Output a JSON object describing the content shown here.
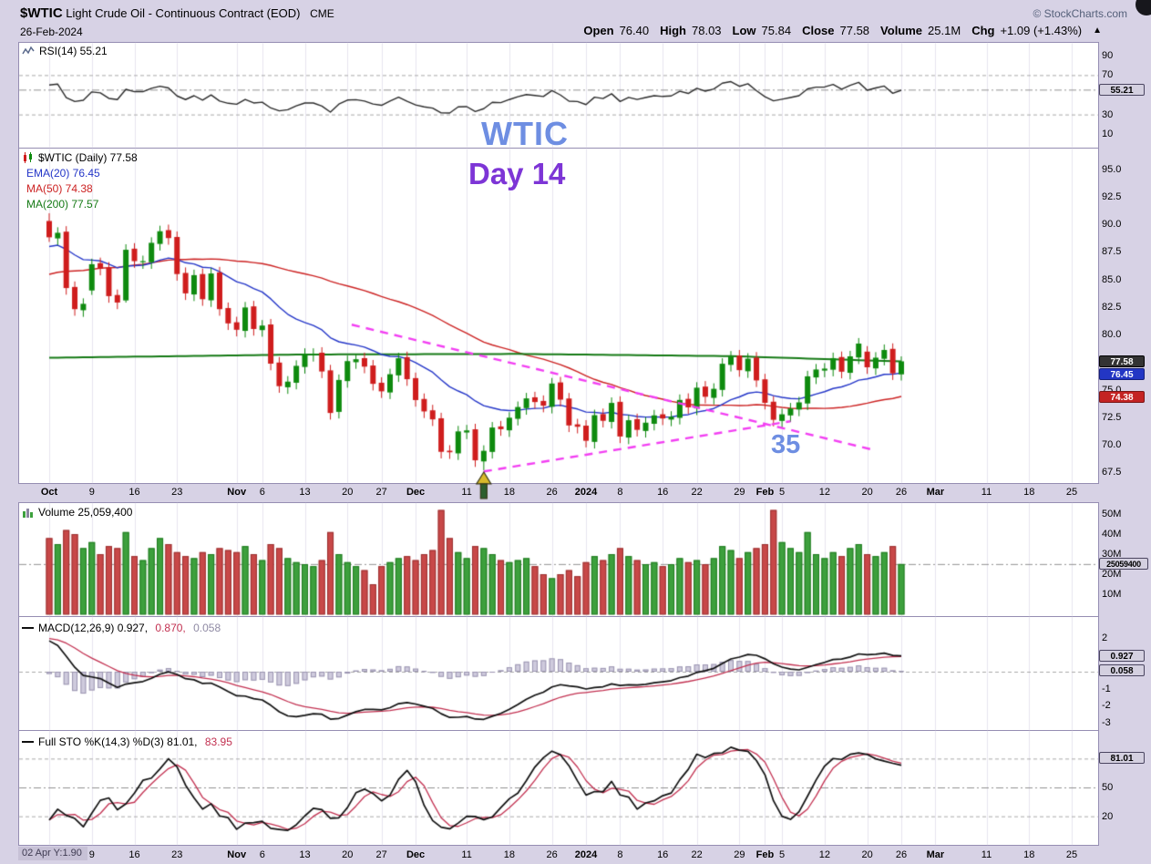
{
  "header": {
    "symbol": "$WTIC",
    "title": "Light Crude Oil - Continuous Contract (EOD)",
    "exchange": "CME",
    "copyright": "© StockCharts.com",
    "date": "26-Feb-2024",
    "quote": {
      "open_label": "Open",
      "open": "76.40",
      "high_label": "High",
      "high": "78.03",
      "low_label": "Low",
      "low": "75.84",
      "close_label": "Close",
      "close": "77.58",
      "volume_label": "Volume",
      "volume": "25.1M",
      "chg_label": "Chg",
      "chg": "+1.09 (+1.43%)",
      "chg_arrow": "▲"
    }
  },
  "legends": {
    "rsi": "RSI(14) 55.21",
    "price_symbol": "$WTIC (Daily) 77.58",
    "ema20": "EMA(20) 76.45",
    "ma50": "MA(50) 74.38",
    "ma200": "MA(200) 77.57",
    "volume": "Volume 25,059,400",
    "macd_1": "MACD(12,26,9) 0.927, ",
    "macd_2": "0.870, ",
    "macd_3": "0.058",
    "sto_1": "Full STO %K(14,3) %D(3) 81.01, ",
    "sto_2": "83.95"
  },
  "annotations": {
    "symbol_note": "WTIC",
    "day_note": "Day 14",
    "count_note": "35"
  },
  "footer_note": "02 Apr Y:1.90",
  "chart_data": {
    "type": "candlestick",
    "symbol": "$WTIC",
    "period": "Daily",
    "date_range": "2023-10-02 to 2024-02-26",
    "x_ticks": [
      {
        "i": 0,
        "label": "Oct",
        "bold": true
      },
      {
        "i": 5,
        "label": "9"
      },
      {
        "i": 10,
        "label": "16"
      },
      {
        "i": 15,
        "label": "23"
      },
      {
        "i": 22,
        "label": "Nov",
        "bold": true
      },
      {
        "i": 25,
        "label": "6"
      },
      {
        "i": 30,
        "label": "13"
      },
      {
        "i": 35,
        "label": "20"
      },
      {
        "i": 39,
        "label": "27"
      },
      {
        "i": 43,
        "label": "Dec",
        "bold": true
      },
      {
        "i": 49,
        "label": "11"
      },
      {
        "i": 54,
        "label": "18"
      },
      {
        "i": 59,
        "label": "26"
      },
      {
        "i": 63,
        "label": "2024",
        "bold": true
      },
      {
        "i": 67,
        "label": "8"
      },
      {
        "i": 72,
        "label": "16"
      },
      {
        "i": 76,
        "label": "22"
      },
      {
        "i": 81,
        "label": "29"
      },
      {
        "i": 84,
        "label": "Feb",
        "bold": true
      },
      {
        "i": 86,
        "label": "5"
      },
      {
        "i": 91,
        "label": "12"
      },
      {
        "i": 96,
        "label": "20"
      },
      {
        "i": 100,
        "label": "26"
      },
      {
        "i": 104,
        "label": "Mar",
        "bold": true
      },
      {
        "i": 110,
        "label": "11"
      },
      {
        "i": 115,
        "label": "18"
      },
      {
        "i": 120,
        "label": "25"
      }
    ],
    "y_axis": {
      "rsi": {
        "ticks": [
          90,
          70,
          30,
          10
        ],
        "box": {
          "value": 55.21,
          "label": "55.21"
        },
        "dashed": [
          70,
          30
        ],
        "dashdot": [
          55.21
        ]
      },
      "price": {
        "ticks": [
          95.0,
          92.5,
          90.0,
          87.5,
          85.0,
          82.5,
          80.0,
          75.0,
          72.5,
          70.0,
          67.5
        ],
        "boxes": [
          {
            "value": 77.58,
            "label": "77.58",
            "style": "dark"
          },
          {
            "value": 76.45,
            "label": "76.45",
            "style": "blue"
          },
          {
            "value": 74.38,
            "label": "74.38",
            "style": "red"
          }
        ]
      },
      "volume": {
        "ticks": [
          {
            "v": 50,
            "label": "50M"
          },
          {
            "v": 40,
            "label": "40M"
          },
          {
            "v": 30,
            "label": "30M"
          },
          {
            "v": 20,
            "label": "20M"
          },
          {
            "v": 10,
            "label": "10M"
          }
        ],
        "box": {
          "value": 25.0594,
          "label": "25059400"
        },
        "dashdot": [
          25.0594
        ]
      },
      "macd": {
        "ticks": [
          {
            "v": 2,
            "label": "2"
          },
          {
            "v": 1,
            "label": "1"
          },
          {
            "v": -1,
            "label": "-1"
          },
          {
            "v": -2,
            "label": "-2"
          },
          {
            "v": -3,
            "label": "-3"
          }
        ],
        "boxes": [
          {
            "value": 0.927,
            "label": "0.927"
          },
          {
            "value": 0.058,
            "label": "0.058"
          }
        ],
        "dashed": [
          0
        ]
      },
      "sto": {
        "ticks": [
          {
            "v": 50,
            "label": "50"
          },
          {
            "v": 20,
            "label": "20"
          }
        ],
        "box": {
          "value": 81.01,
          "label": "81.01"
        },
        "dashed": [
          80,
          20
        ],
        "dashdot": [
          50
        ]
      }
    },
    "candles": {
      "open": [
        90.3,
        88.72,
        89.33,
        84.32,
        82.21,
        84.0,
        86.48,
        86.07,
        83.59,
        83.1,
        87.79,
        86.56,
        86.56,
        88.22,
        89.47,
        88.85,
        85.59,
        83.64,
        85.49,
        83.11,
        85.64,
        82.41,
        81.12,
        80.34,
        82.56,
        80.41,
        80.92,
        77.47,
        75.23,
        75.64,
        77.07,
        78.16,
        78.36,
        76.76,
        73.0,
        75.79,
        77.5,
        77.87,
        77.2,
        75.64,
        74.76,
        76.31,
        77.96,
        76.06,
        74.17,
        73.14,
        72.42,
        69.48,
        69.24,
        71.13,
        71.42,
        68.51,
        69.37,
        71.68,
        71.33,
        72.37,
        73.34,
        74.32,
        73.99,
        73.46,
        75.67,
        74.21,
        71.87,
        71.75,
        70.28,
        72.8,
        72.09,
        73.91,
        70.67,
        72.34,
        71.27,
        71.92,
        72.78,
        72.3,
        72.46,
        74.18,
        73.31,
        75.29,
        74.27,
        74.99,
        77.26,
        78.11,
        76.68,
        77.92,
        75.95,
        73.92,
        72.18,
        72.68,
        73.21,
        73.76,
        76.12,
        76.74,
        76.82,
        77.97,
        76.54,
        77.93,
        78.46,
        76.94,
        77.81,
        78.71,
        76.4
      ],
      "high": [
        91.0,
        89.73,
        89.83,
        84.82,
        83.29,
        86.88,
        86.98,
        86.57,
        84.09,
        88.19,
        88.29,
        87.16,
        88.82,
        89.87,
        89.97,
        89.35,
        86.09,
        85.89,
        85.99,
        86.04,
        86.14,
        82.91,
        81.62,
        82.96,
        83.06,
        81.32,
        81.42,
        77.97,
        76.24,
        77.67,
        78.76,
        78.76,
        78.86,
        77.26,
        76.39,
        78.1,
        78.27,
        78.37,
        77.7,
        76.14,
        76.91,
        78.36,
        78.46,
        76.56,
        74.67,
        73.64,
        72.92,
        69.98,
        71.73,
        71.82,
        71.92,
        69.97,
        72.08,
        72.18,
        72.97,
        73.94,
        74.72,
        74.82,
        74.49,
        76.07,
        76.17,
        74.71,
        72.37,
        72.25,
        73.2,
        73.3,
        74.31,
        74.41,
        72.74,
        72.84,
        72.52,
        73.18,
        73.28,
        73.06,
        74.58,
        74.68,
        75.69,
        75.79,
        75.59,
        77.86,
        78.51,
        78.61,
        78.32,
        78.42,
        76.45,
        74.42,
        73.28,
        73.81,
        74.36,
        76.72,
        77.34,
        77.42,
        78.37,
        78.47,
        78.53,
        79.69,
        78.96,
        78.41,
        79.11,
        79.21,
        78.03
      ],
      "low": [
        88.4,
        88.12,
        83.62,
        81.71,
        81.61,
        83.6,
        85.37,
        82.89,
        82.31,
        82.9,
        86.06,
        85.96,
        85.96,
        87.62,
        88.15,
        84.89,
        83.14,
        83.04,
        82.61,
        82.51,
        81.71,
        80.42,
        79.84,
        79.74,
        79.91,
        79.81,
        76.77,
        74.73,
        74.63,
        75.04,
        76.47,
        77.56,
        76.06,
        72.3,
        72.4,
        75.19,
        76.9,
        76.5,
        74.94,
        74.26,
        74.16,
        75.71,
        75.36,
        73.47,
        72.44,
        71.72,
        68.78,
        68.74,
        68.64,
        70.53,
        68.01,
        67.71,
        68.77,
        70.83,
        70.73,
        71.77,
        72.74,
        73.29,
        72.96,
        72.86,
        73.51,
        71.17,
        71.05,
        69.78,
        69.68,
        71.59,
        71.49,
        70.17,
        70.07,
        70.77,
        70.67,
        71.32,
        71.8,
        71.7,
        71.86,
        72.81,
        72.71,
        73.77,
        73.67,
        74.39,
        76.66,
        76.18,
        76.08,
        75.25,
        73.22,
        71.68,
        71.58,
        72.08,
        72.61,
        73.16,
        75.52,
        76.14,
        76.22,
        76.04,
        75.94,
        77.33,
        76.44,
        76.34,
        77.21,
        75.89,
        75.84
      ],
      "close": [
        88.82,
        89.23,
        84.22,
        82.31,
        82.79,
        86.38,
        85.97,
        83.49,
        82.91,
        87.69,
        86.66,
        86.66,
        88.32,
        89.37,
        88.75,
        85.49,
        83.74,
        85.39,
        83.21,
        85.54,
        82.31,
        81.02,
        80.44,
        82.46,
        80.51,
        80.82,
        77.37,
        75.33,
        75.74,
        77.17,
        78.26,
        78.26,
        76.66,
        72.9,
        75.89,
        77.6,
        77.77,
        77.1,
        75.54,
        74.86,
        76.41,
        77.86,
        75.96,
        74.07,
        73.04,
        72.32,
        69.38,
        69.34,
        71.23,
        71.32,
        68.61,
        69.47,
        71.58,
        71.43,
        72.47,
        73.44,
        74.22,
        73.89,
        73.56,
        75.57,
        74.11,
        71.77,
        71.65,
        70.38,
        72.7,
        72.19,
        73.81,
        70.77,
        72.24,
        71.37,
        72.02,
        72.68,
        72.4,
        72.56,
        74.08,
        73.41,
        75.19,
        74.37,
        75.09,
        77.36,
        78.01,
        76.78,
        77.82,
        75.85,
        73.82,
        72.28,
        72.78,
        73.31,
        73.86,
        76.22,
        76.84,
        76.92,
        77.87,
        76.64,
        78.03,
        79.19,
        77.04,
        77.91,
        78.61,
        76.49,
        77.58
      ]
    },
    "volume_millions": [
      38,
      35,
      42,
      40,
      33,
      36,
      30,
      34,
      33,
      41,
      29,
      27,
      33,
      38,
      35,
      31,
      29,
      28,
      31,
      30,
      33,
      32,
      31,
      34,
      30,
      27,
      35,
      33,
      28,
      26,
      25,
      24,
      27,
      41,
      30,
      26,
      24,
      22,
      15,
      24,
      26,
      28,
      29,
      27,
      30,
      32,
      52,
      38,
      31,
      28,
      34,
      33,
      30,
      27,
      26,
      27,
      28,
      24,
      20,
      18,
      20,
      22,
      19,
      26,
      29,
      27,
      30,
      33,
      29,
      27,
      25,
      26,
      24,
      25,
      28,
      26,
      27,
      25,
      28,
      34,
      32,
      28,
      31,
      33,
      35,
      52,
      36,
      33,
      31,
      41,
      30,
      28,
      31,
      29,
      33,
      35,
      30,
      29,
      31,
      34,
      25.0594
    ],
    "overlays": {
      "ma200_points": [
        [
          0,
          77.9
        ],
        [
          30,
          78.2
        ],
        [
          55,
          78.25
        ],
        [
          80,
          78.05
        ],
        [
          100,
          77.57
        ]
      ]
    },
    "seeds": {
      "prev_close": 90.79,
      "rsi_avg_gain": 0.9,
      "rsi_avg_loss": 0.45,
      "ema20": 87.9,
      "ema12": 91.4,
      "ema26": 89.2,
      "macd_signal": 2.0,
      "ma50_pre_start": 80.0,
      "ma50_pre_end": 90.8
    },
    "trendlines": [
      {
        "i1": 35.5,
        "p1": 80.9,
        "i2": 96.5,
        "p2": 69.6
      },
      {
        "i1": 51,
        "p1": 67.6,
        "i2": 87,
        "p2": 72.15
      }
    ],
    "marker": {
      "i": 51,
      "price": 67.71,
      "type": "arrow-up"
    },
    "colors": {
      "up": "#0e8a0e",
      "down": "#cf1d1d",
      "vol_up": "#3da03d",
      "vol_up_border": "#1f7a1f",
      "vol_down": "#c84848",
      "vol_down_border": "#9a3030",
      "ema20": "#2436c8",
      "ma50": "#cc2222",
      "ma200": "#157a15",
      "macd_line": "#101010",
      "macd_signal": "#c23050",
      "macd_hist": "#cfcbdd",
      "macd_hist_border": "#9b95b1",
      "sto_k": "#101010",
      "sto_d": "#c23050",
      "rsi": "#2b2b2b",
      "trendline": "#f23ff2",
      "grid": "#e7e4ef",
      "levels": "#a8a8a8",
      "note_blue": "#6e8ee2",
      "note_purple": "#7d35d6",
      "marker_gold": "#d8b92a",
      "marker_green": "#2d5f2d"
    }
  }
}
